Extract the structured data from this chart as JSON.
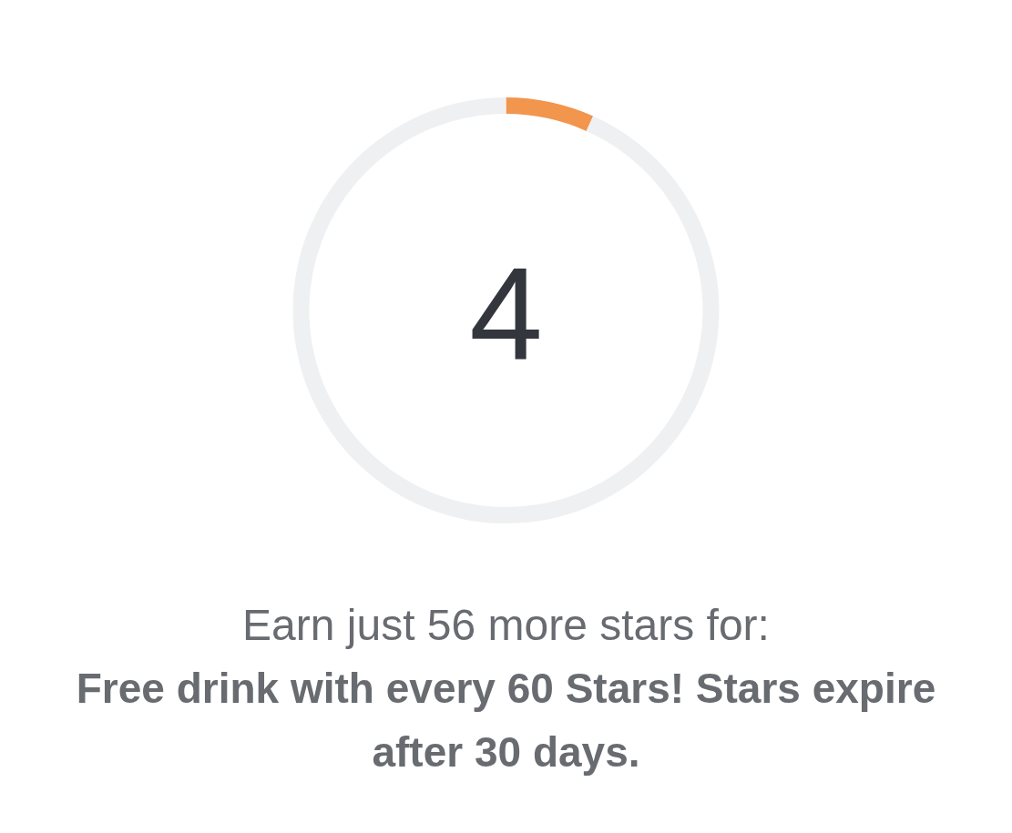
{
  "chart_data": {
    "type": "donut",
    "categories": [
      null,
      null
    ],
    "values": [
      6.7,
      93.3
    ],
    "colors": [
      "#f2954d",
      "#eff0f2"
    ],
    "annotations": [
      "4",
      "Earn just 56 more stars for:",
      "Free drink with every 60 Stars! Stars expire after 30 days."
    ]
  }
}
